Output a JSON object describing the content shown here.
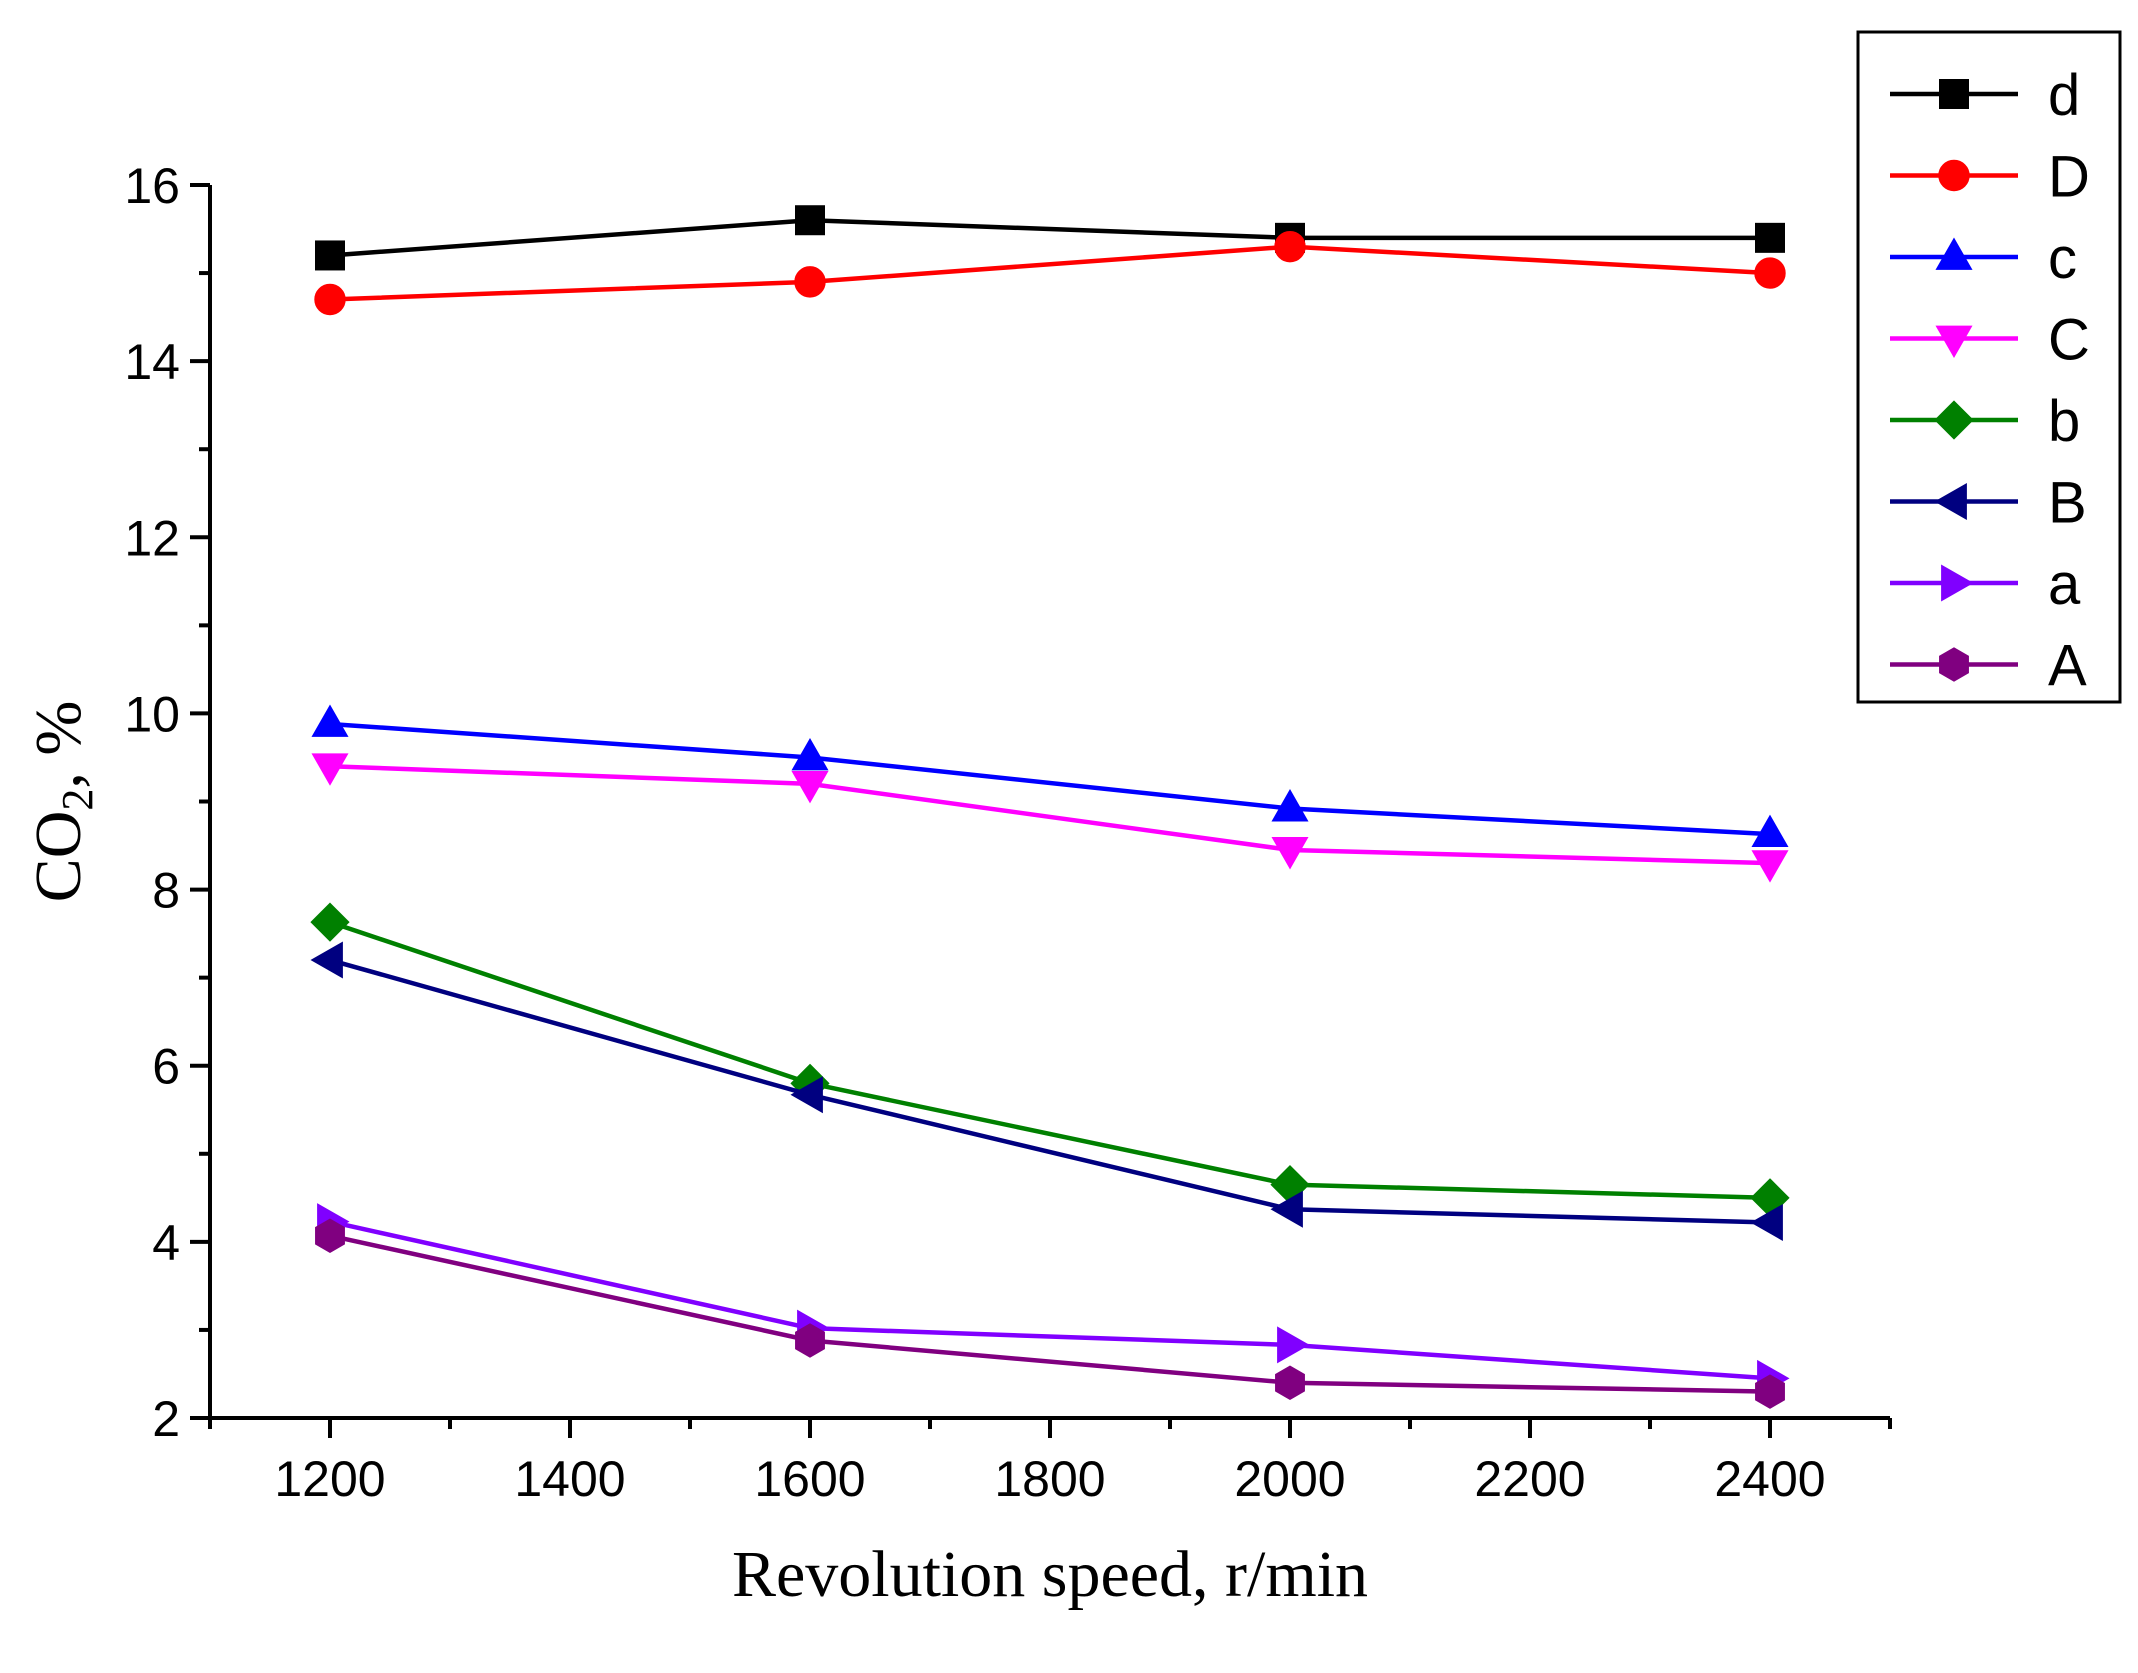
{
  "chart_data": {
    "type": "line",
    "title": "",
    "xlabel": "Revolution speed, r/min",
    "ylabel": {
      "base": "CO",
      "sub": "2",
      "rest": ", %"
    },
    "xlim": [
      1100,
      2500
    ],
    "ylim": [
      2,
      16
    ],
    "x_ticks": [
      1200,
      1400,
      1600,
      1800,
      2000,
      2200,
      2400
    ],
    "x_tick_labels": [
      "1200",
      "1400",
      "1600",
      "1800",
      "2000",
      "2200",
      "2400"
    ],
    "y_ticks": [
      2,
      4,
      6,
      8,
      10,
      12,
      14,
      16
    ],
    "y_tick_labels": [
      "2",
      "4",
      "6",
      "8",
      "10",
      "12",
      "14",
      "16"
    ],
    "grid": false,
    "legend_position": "top-right-outside",
    "x": [
      1200,
      1600,
      2000,
      2400
    ],
    "series": [
      {
        "name": "d",
        "color": "#000000",
        "marker": "square",
        "values": [
          15.2,
          15.6,
          15.4,
          15.4
        ]
      },
      {
        "name": "D",
        "color": "#ff0000",
        "marker": "circle",
        "values": [
          14.7,
          14.9,
          15.3,
          15.0
        ]
      },
      {
        "name": "c",
        "color": "#0000ff",
        "marker": "triangle-up",
        "values": [
          9.88,
          9.5,
          8.92,
          8.63
        ]
      },
      {
        "name": "C",
        "color": "#ff00ff",
        "marker": "triangle-down",
        "values": [
          9.4,
          9.2,
          8.45,
          8.3
        ]
      },
      {
        "name": "b",
        "color": "#008000",
        "marker": "diamond",
        "values": [
          7.63,
          5.8,
          4.65,
          4.5
        ]
      },
      {
        "name": "B",
        "color": "#000080",
        "marker": "triangle-left",
        "values": [
          7.2,
          5.67,
          4.37,
          4.22
        ]
      },
      {
        "name": "a",
        "color": "#8000ff",
        "marker": "triangle-right",
        "values": [
          4.23,
          3.02,
          2.83,
          2.45
        ]
      },
      {
        "name": "A",
        "color": "#800080",
        "marker": "hexagon",
        "values": [
          4.07,
          2.88,
          2.4,
          2.3
        ]
      }
    ]
  }
}
